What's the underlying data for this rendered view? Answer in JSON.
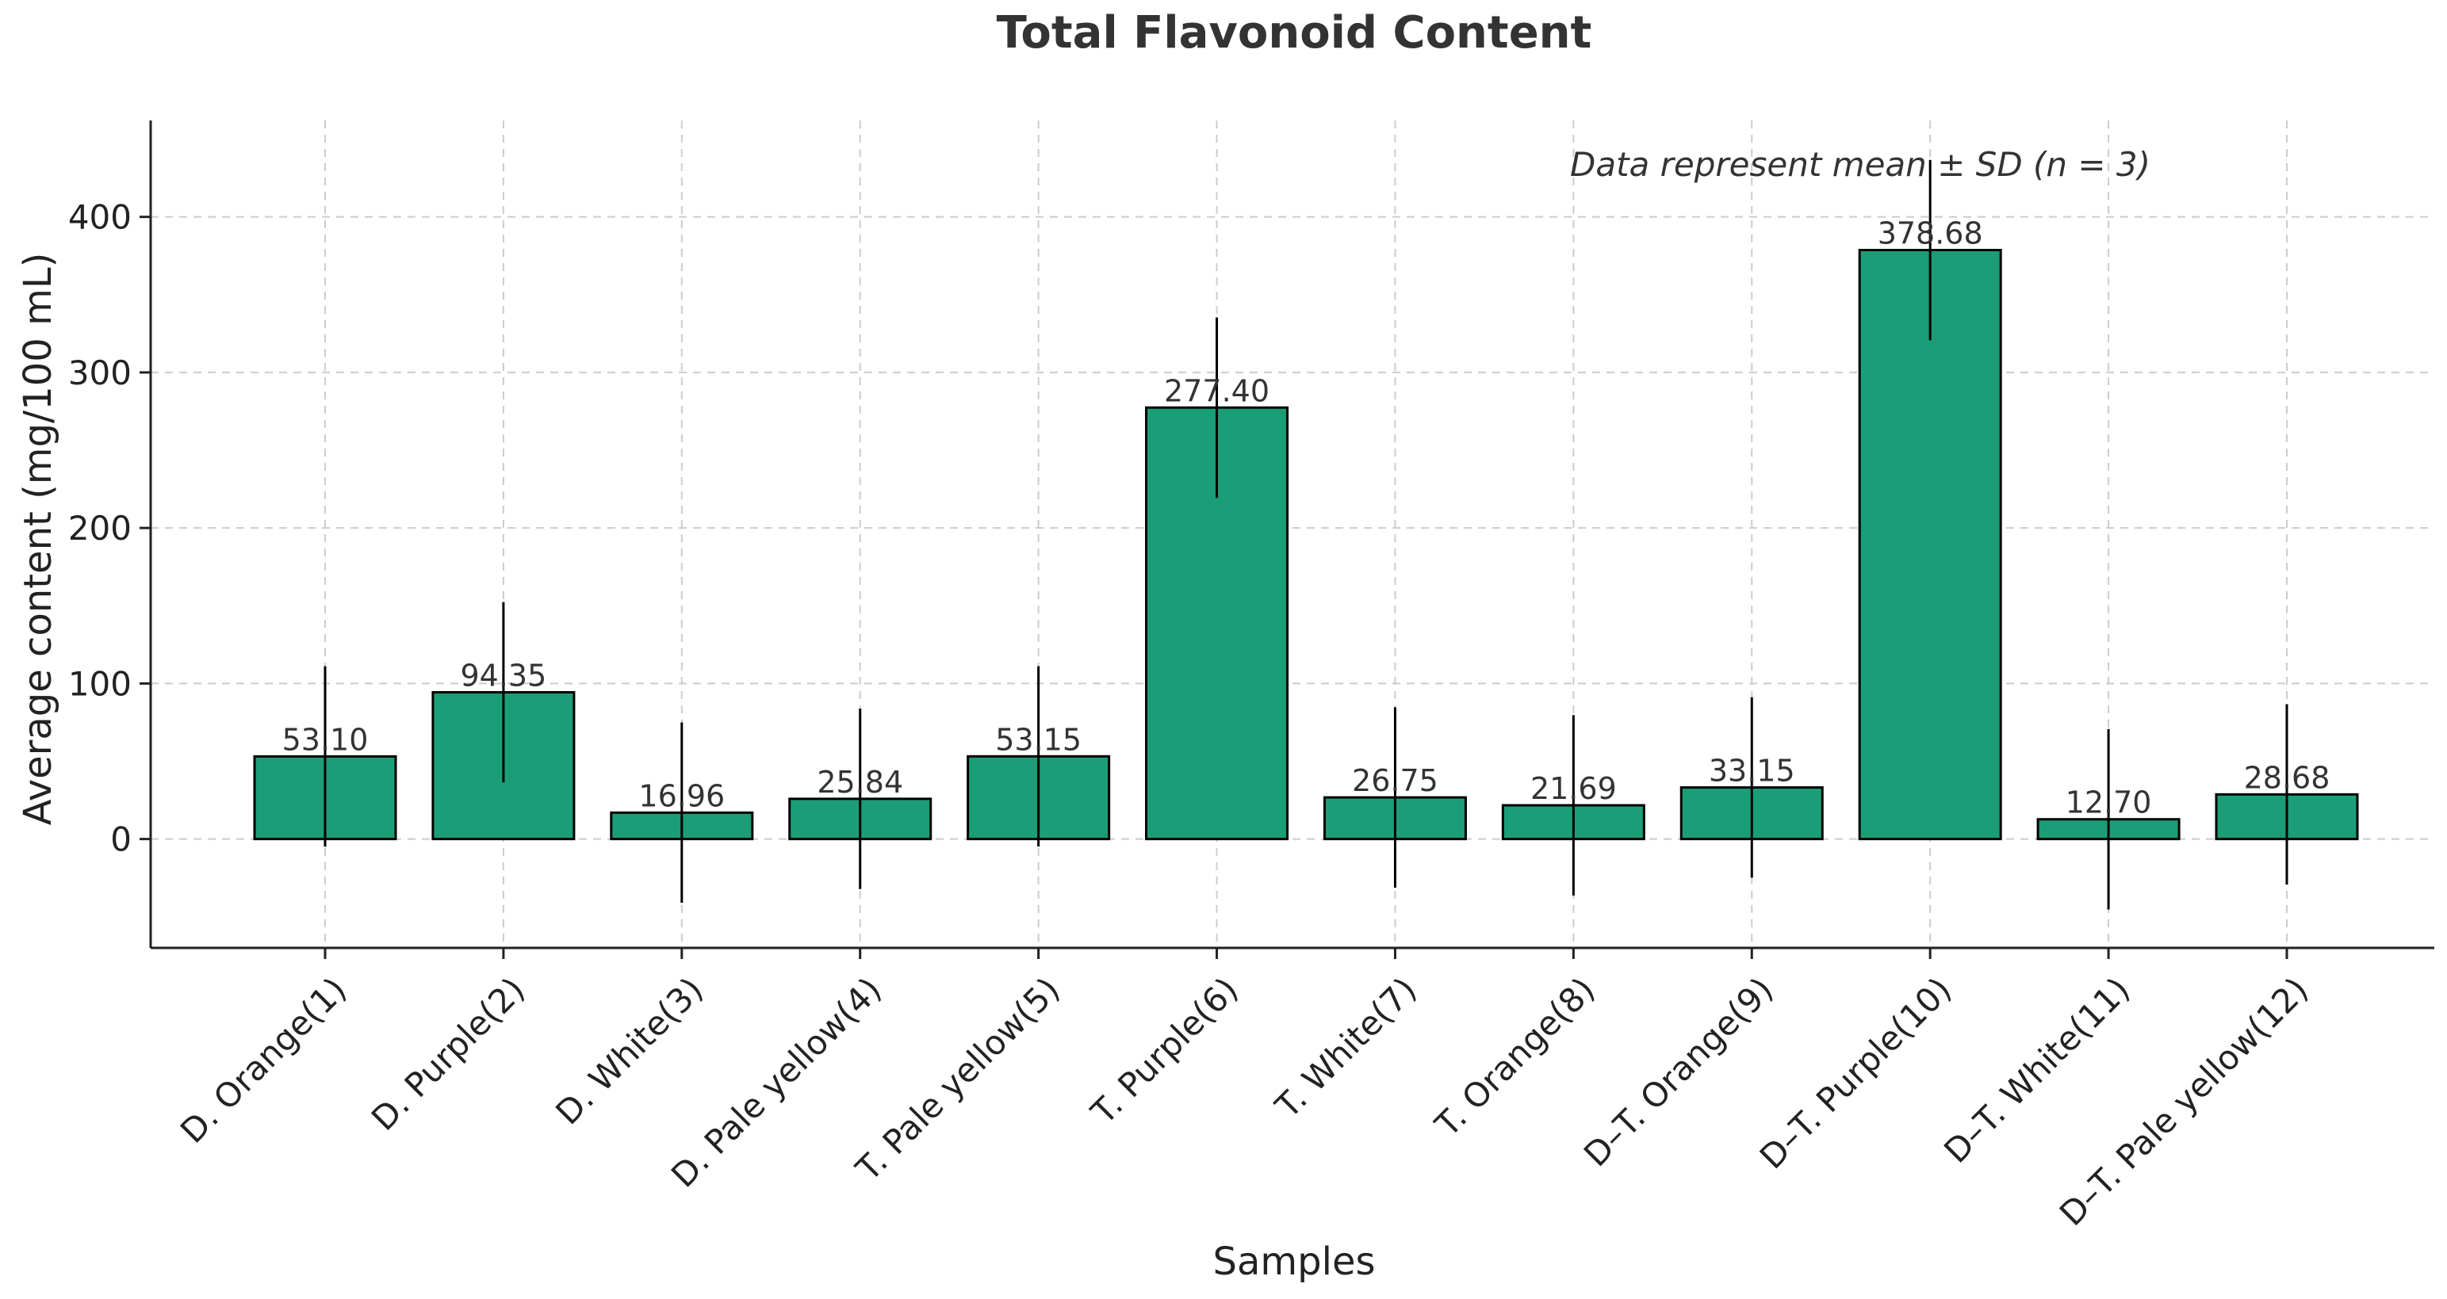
{
  "chart_data": {
    "type": "bar",
    "title": "Total Flavonoid Content",
    "xlabel": "Samples",
    "ylabel": "Average content (mg/100 mL)",
    "annotation": "Data represent mean ± SD (n = 3)",
    "ylim": [
      -70,
      462
    ],
    "yticks": [
      0,
      100,
      200,
      300,
      400
    ],
    "grid": true,
    "bar_color": "#1b9e77",
    "edge_color": "#000000",
    "categories": [
      "D. Orange(1)",
      "D. Purple(2)",
      "D. White(3)",
      "D. Pale yellow(4)",
      "T. Pale yellow(5)",
      "T. Purple(6)",
      "T. White(7)",
      "T. Orange(8)",
      "D–T. Orange(9)",
      "D–T. Purple(10)",
      "D–T. White(11)",
      "D–T. Pale yellow(12)"
    ],
    "values": [
      53.1,
      94.35,
      16.96,
      25.84,
      53.15,
      277.4,
      26.75,
      21.69,
      33.15,
      378.68,
      12.7,
      28.68
    ],
    "value_labels": [
      "53.10",
      "94.35",
      "16.96",
      "25.84",
      "53.15",
      "277.40",
      "26.75",
      "21.69",
      "33.15",
      "378.68",
      "12.70",
      "28.68"
    ],
    "errors": [
      58,
      58,
      58,
      58,
      58,
      58,
      58,
      58,
      58,
      58,
      58,
      58
    ]
  }
}
